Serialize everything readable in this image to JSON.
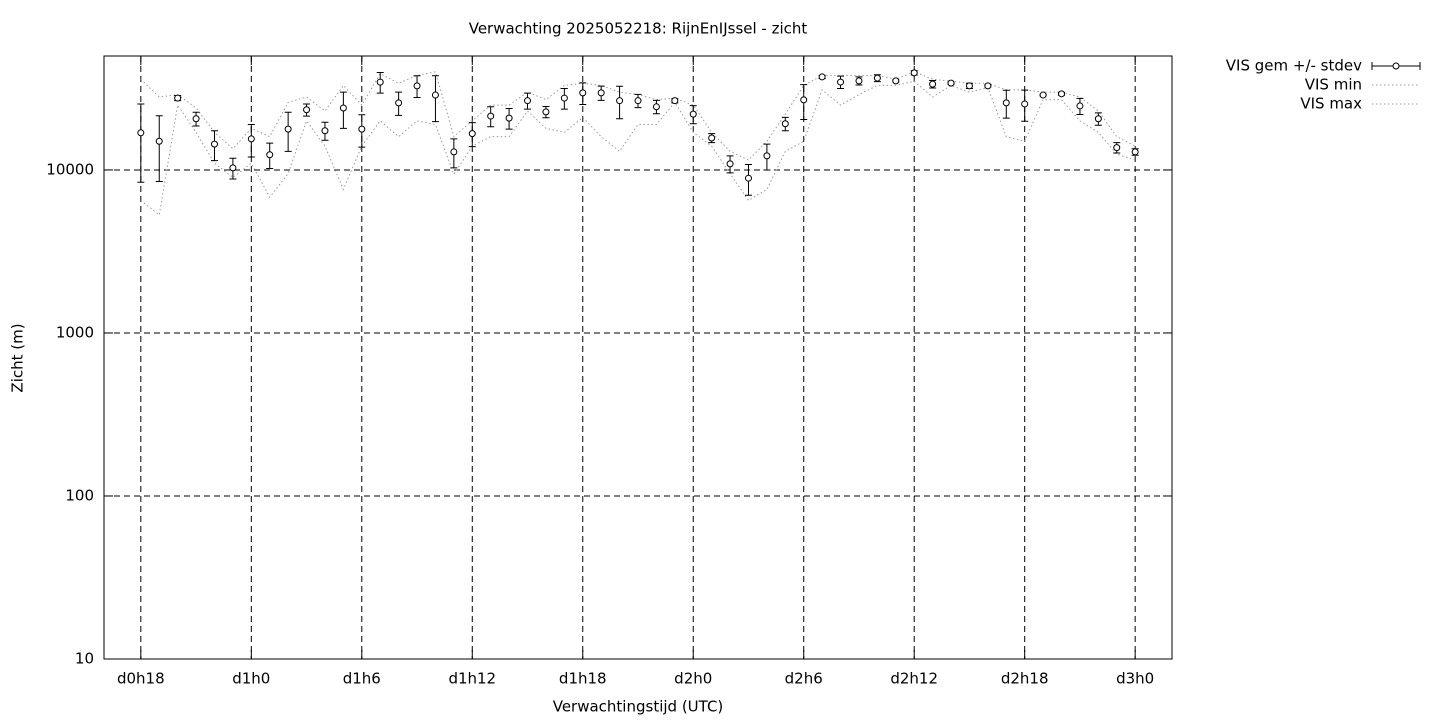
{
  "chart_data": {
    "type": "errorline",
    "title": "Verwachting 2025052218: RijnEnIJssel - zicht",
    "x_label": "Verwachtingstijd (UTC)",
    "y_label": "Zicht (m)",
    "x": [
      18,
      19,
      20,
      21,
      22,
      23,
      24,
      25,
      26,
      27,
      28,
      29,
      30,
      31,
      32,
      33,
      34,
      35,
      36,
      37,
      38,
      39,
      40,
      41,
      42,
      43,
      44,
      45,
      46,
      47,
      48,
      49,
      50,
      51,
      52,
      53,
      54,
      55,
      56,
      57,
      58,
      59,
      60,
      61,
      62,
      63,
      64,
      65,
      66,
      67,
      68,
      69,
      70,
      71,
      72
    ],
    "xlim": [
      16,
      74
    ],
    "xticks": [
      {
        "value": 18,
        "label": "d0h18"
      },
      {
        "value": 24,
        "label": "d1h0"
      },
      {
        "value": 30,
        "label": "d1h6"
      },
      {
        "value": 36,
        "label": "d1h12"
      },
      {
        "value": 42,
        "label": "d1h18"
      },
      {
        "value": 48,
        "label": "d2h0"
      },
      {
        "value": 54,
        "label": "d2h6"
      },
      {
        "value": 60,
        "label": "d2h12"
      },
      {
        "value": 66,
        "label": "d2h18"
      },
      {
        "value": 72,
        "label": "d3h0"
      }
    ],
    "ylim": [
      10,
      50000
    ],
    "yticks": [
      10,
      100,
      1000,
      10000
    ],
    "log_y": true,
    "grid": true,
    "legend": "top-right-outside",
    "series": [
      {
        "name": "VIS gem +/- stdev",
        "color": "#000000",
        "style": "errorbars",
        "values": [
          16900,
          15000,
          27600,
          20600,
          14400,
          10300,
          15500,
          12400,
          17800,
          23400,
          17400,
          24000,
          17800,
          34600,
          25800,
          32800,
          28800,
          12900,
          16700,
          21400,
          20800,
          26600,
          22700,
          27600,
          29700,
          29700,
          26600,
          26600,
          24400,
          26600,
          22000,
          15700,
          10900,
          8900,
          12200,
          19200,
          26900,
          37200,
          34600,
          35200,
          36600,
          35200,
          39400,
          33600,
          34100,
          32800,
          32800,
          25800,
          25400,
          28800,
          29300,
          24700,
          20600,
          13700,
          12900
        ],
        "error": [
          8500,
          6500,
          1000,
          2000,
          3000,
          1500,
          3500,
          2200,
          4800,
          2000,
          2200,
          6000,
          4000,
          5000,
          4200,
          5000,
          9000,
          2600,
          2800,
          3000,
          3000,
          3000,
          1800,
          4000,
          4500,
          3000,
          6000,
          2500,
          2300,
          800,
          2800,
          1000,
          1300,
          1900,
          2200,
          1800,
          6500,
          800,
          3000,
          2000,
          1800,
          500,
          1200,
          1800,
          500,
          1200,
          500,
          5000,
          5500,
          300,
          600,
          2800,
          1800,
          1000,
          600
        ]
      },
      {
        "name": "VIS min",
        "color": "#999999",
        "style": "dotted",
        "values": [
          6500,
          5300,
          25000,
          17000,
          11000,
          9000,
          11000,
          6800,
          9500,
          20000,
          14000,
          7600,
          14000,
          20000,
          16000,
          20000,
          19000,
          9400,
          14000,
          16000,
          16000,
          23000,
          18000,
          17000,
          21000,
          16000,
          13000,
          19000,
          19000,
          26000,
          17000,
          14000,
          9500,
          6500,
          7600,
          13000,
          15000,
          31000,
          25000,
          29000,
          33000,
          33000,
          35000,
          28000,
          33000,
          30000,
          32000,
          16000,
          15000,
          27000,
          27000,
          20000,
          17000,
          12500,
          11500
        ]
      },
      {
        "name": "VIS max",
        "color": "#999999",
        "style": "dotted",
        "values": [
          36000,
          28000,
          29000,
          24000,
          17000,
          13500,
          18000,
          16000,
          26000,
          28000,
          23000,
          33000,
          25000,
          39000,
          34000,
          38000,
          40000,
          16000,
          20000,
          25000,
          25000,
          30000,
          27000,
          33000,
          34000,
          33000,
          30000,
          29000,
          27000,
          27500,
          25000,
          17000,
          13000,
          11500,
          15000,
          22000,
          33000,
          38000,
          38000,
          38000,
          38000,
          36000,
          40000,
          36000,
          35000,
          34000,
          34000,
          31000,
          31000,
          30000,
          30000,
          28000,
          23000,
          16000,
          14000
        ]
      }
    ]
  }
}
